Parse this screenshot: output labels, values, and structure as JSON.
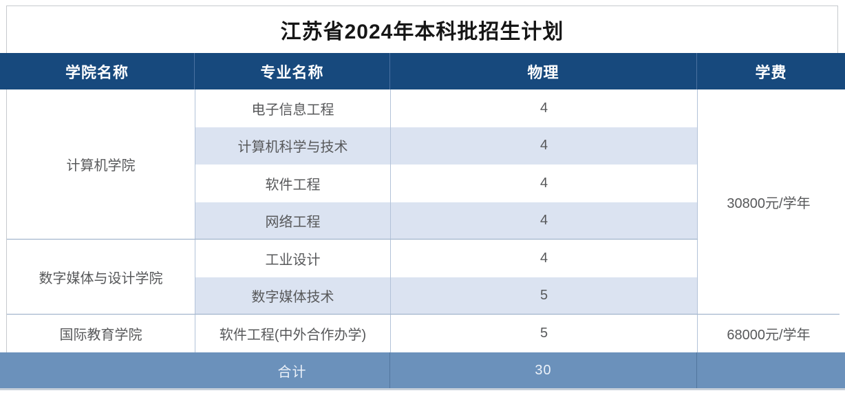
{
  "title": "江苏省2024年本科批招生计划",
  "colors": {
    "header_bg": "#17497d",
    "header_text": "#ffffff",
    "stripe_row": "#dbe3f1",
    "footer_bg": "#6b91bb",
    "footer_text": "#edf2f9",
    "body_text": "#57585a",
    "grid_line": "#b2c2d8"
  },
  "table": {
    "headers": [
      "学院名称",
      "专业名称",
      "物理",
      "学费"
    ],
    "colleges": [
      {
        "name": "计算机学院",
        "majors": [
          {
            "major": "电子信息工程",
            "physics": "4"
          },
          {
            "major": "计算机科学与技术",
            "physics": "4"
          },
          {
            "major": "软件工程",
            "physics": "4"
          },
          {
            "major": "网络工程",
            "physics": "4"
          }
        ]
      },
      {
        "name": "数字媒体与设计学院",
        "majors": [
          {
            "major": "工业设计",
            "physics": "4"
          },
          {
            "major": "数字媒体技术",
            "physics": "5"
          }
        ]
      },
      {
        "name": "国际教育学院",
        "majors": [
          {
            "major": "软件工程(中外合作办学)",
            "physics": "5"
          }
        ]
      }
    ],
    "tuitions": [
      {
        "label": "30800元/学年",
        "rows": 6
      },
      {
        "label": "68000元/学年",
        "rows": 1
      }
    ],
    "footer": {
      "label": "合计",
      "total": "30"
    }
  }
}
